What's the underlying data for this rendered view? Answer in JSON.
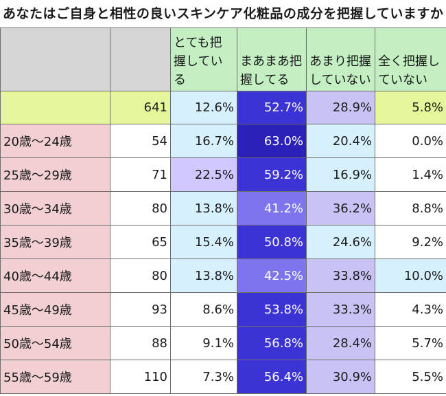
{
  "title": "あなたはご自身と相性の良いスキンケア化粧品の成分を把握していますか",
  "headers": [
    "",
    "",
    "とても把握している",
    "まあまあ把握してる",
    "あまり把握していない",
    "全く把握していない"
  ],
  "total": {
    "label": "",
    "n": "641",
    "v1": "12.6%",
    "v2": "52.7%",
    "v3": "28.9%",
    "v4": "5.8%"
  },
  "rows": [
    {
      "label": "20歳〜24歳",
      "n": "54",
      "v1": "16.7%",
      "v2": "63.0%",
      "v3": "20.4%",
      "v4": "0.0%"
    },
    {
      "label": "25歳〜29歳",
      "n": "71",
      "v1": "22.5%",
      "v2": "59.2%",
      "v3": "16.9%",
      "v4": "1.4%"
    },
    {
      "label": "30歳〜34歳",
      "n": "80",
      "v1": "13.8%",
      "v2": "41.2%",
      "v3": "36.2%",
      "v4": "8.8%"
    },
    {
      "label": "35歳〜39歳",
      "n": "65",
      "v1": "15.4%",
      "v2": "50.8%",
      "v3": "24.6%",
      "v4": "9.2%"
    },
    {
      "label": "40歳〜44歳",
      "n": "80",
      "v1": "13.8%",
      "v2": "42.5%",
      "v3": "33.8%",
      "v4": "10.0%"
    },
    {
      "label": "45歳〜49歳",
      "n": "93",
      "v1": "8.6%",
      "v2": "53.8%",
      "v3": "33.3%",
      "v4": "4.3%"
    },
    {
      "label": "50歳〜54歳",
      "n": "88",
      "v1": "9.1%",
      "v2": "56.8%",
      "v3": "28.4%",
      "v4": "5.7%"
    },
    {
      "label": "55歳〜59歳",
      "n": "110",
      "v1": "7.3%",
      "v2": "56.4%",
      "v3": "30.9%",
      "v4": "5.5%"
    }
  ],
  "colors": {
    "header_green": "#c3efc3",
    "header_gray": "#d6d6d6",
    "total_yellow": "#e4f59a",
    "age_label_pink": "#f2cfd3",
    "heat_dark_blue": "#2b21b8",
    "heat_light_blue": "#d6f1fd",
    "heat_lavender": "#d0c8ff"
  }
}
